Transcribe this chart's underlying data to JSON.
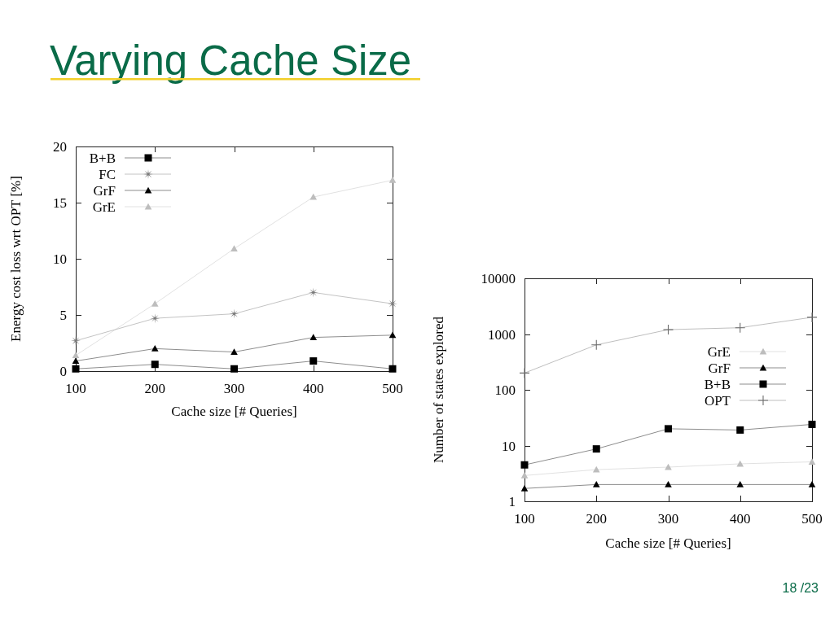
{
  "chart_data": [
    {
      "type": "line",
      "title": "Varying Cache Size",
      "xlabel": "Cache size [# Queries]",
      "ylabel": "Energy cost loss wrt OPT [%]",
      "x": [
        100,
        200,
        300,
        400,
        500
      ],
      "xlim": [
        100,
        500
      ],
      "xticks": [
        100,
        200,
        300,
        400,
        500
      ],
      "ylim": [
        0,
        20
      ],
      "yticks": [
        0,
        5,
        10,
        15,
        20
      ],
      "legend": "top left",
      "series": [
        {
          "name": "B+B",
          "color": "#000000",
          "marker": "square",
          "values": [
            0.2,
            0.6,
            0.2,
            0.9,
            0.2
          ]
        },
        {
          "name": "FC",
          "color": "#7a7a7a",
          "marker": "star",
          "values": [
            2.7,
            4.7,
            5.1,
            7.0,
            6.0
          ]
        },
        {
          "name": "GrF",
          "color": "#000000",
          "marker": "triangle",
          "values": [
            0.9,
            2.0,
            1.7,
            3.0,
            3.2
          ]
        },
        {
          "name": "GrE",
          "color": "#bdbdbd",
          "marker": "triangle",
          "values": [
            1.4,
            6.0,
            10.9,
            15.5,
            17.0
          ]
        }
      ]
    },
    {
      "type": "line",
      "xlabel": "Cache size [# Queries]",
      "ylabel": "Number of states explored",
      "x": [
        100,
        200,
        300,
        400,
        500
      ],
      "xlim": [
        100,
        500
      ],
      "xticks": [
        100,
        200,
        300,
        400,
        500
      ],
      "ylim": [
        1,
        10000
      ],
      "yticks": [
        1,
        10,
        100,
        1000,
        10000
      ],
      "log": "y",
      "legend": "right",
      "annotations": [
        "18 /23"
      ],
      "series": [
        {
          "name": "GrE",
          "color": "#bdbdbd",
          "marker": "triangle",
          "values": [
            2.9,
            3.7,
            4.1,
            4.7,
            5.1
          ]
        },
        {
          "name": "GrF",
          "color": "#000000",
          "marker": "triangle",
          "values": [
            1.7,
            2.0,
            2.0,
            2.0,
            2.0
          ]
        },
        {
          "name": "B+B",
          "color": "#000000",
          "marker": "square",
          "values": [
            4.5,
            8.7,
            20,
            19,
            24
          ]
        },
        {
          "name": "OPT",
          "color": "#6e6e6e",
          "marker": "cross",
          "values": [
            200,
            640,
            1200,
            1300,
            2000
          ]
        }
      ]
    }
  ]
}
